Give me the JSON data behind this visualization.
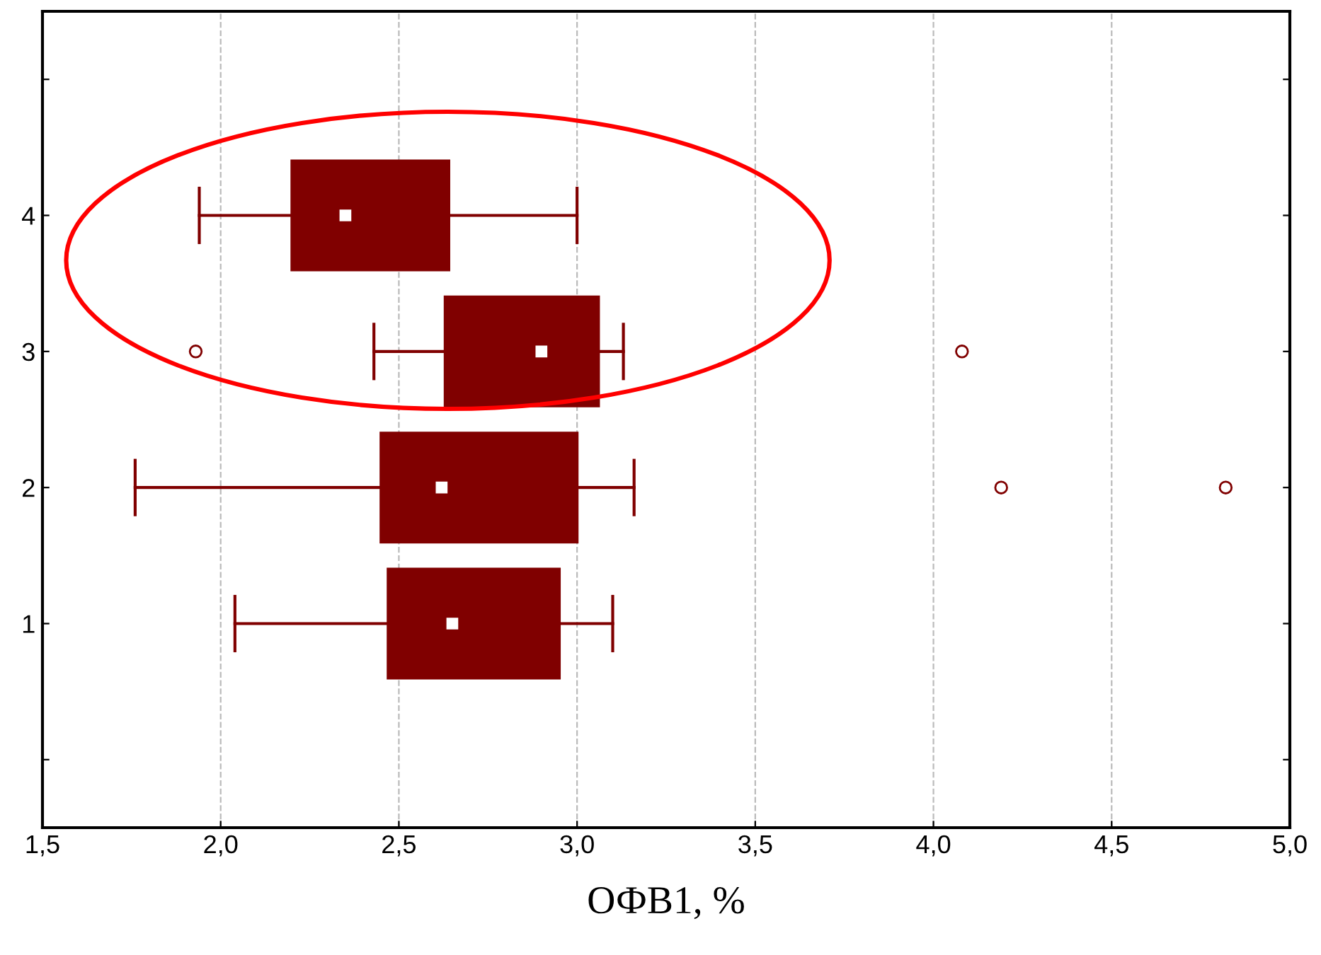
{
  "chart_data": {
    "type": "box",
    "orientation": "horizontal",
    "xlabel": "ОФВ1, %",
    "categories": [
      "4",
      "3",
      "2",
      "1"
    ],
    "color": "#800000",
    "boxes": [
      {
        "low": 1.94,
        "q1": 2.2,
        "median": 2.35,
        "q3": 2.64,
        "high": 3.0
      },
      {
        "low": 2.43,
        "q1": 2.63,
        "median": 2.9,
        "q3": 3.06,
        "high": 3.13,
        "outliers": [
          1.93,
          4.08
        ]
      },
      {
        "low": 1.76,
        "q1": 2.45,
        "median": 2.62,
        "q3": 3.0,
        "high": 3.16,
        "outliers": [
          4.19,
          4.82
        ]
      },
      {
        "low": 2.04,
        "q1": 2.47,
        "median": 2.65,
        "q3": 2.95,
        "high": 3.1
      }
    ],
    "xlim": [
      1.5,
      5.0
    ],
    "xticks": [
      {
        "value": 1.5,
        "label": "1,5"
      },
      {
        "value": 2.0,
        "label": "2,0"
      },
      {
        "value": 2.5,
        "label": "2,5"
      },
      {
        "value": 3.0,
        "label": "3,0"
      },
      {
        "value": 3.5,
        "label": "3,5"
      },
      {
        "value": 4.0,
        "label": "4,0"
      },
      {
        "value": 4.5,
        "label": "4,5"
      },
      {
        "value": 5.0,
        "label": "5,0"
      }
    ],
    "grid": "x",
    "marker": "square"
  }
}
